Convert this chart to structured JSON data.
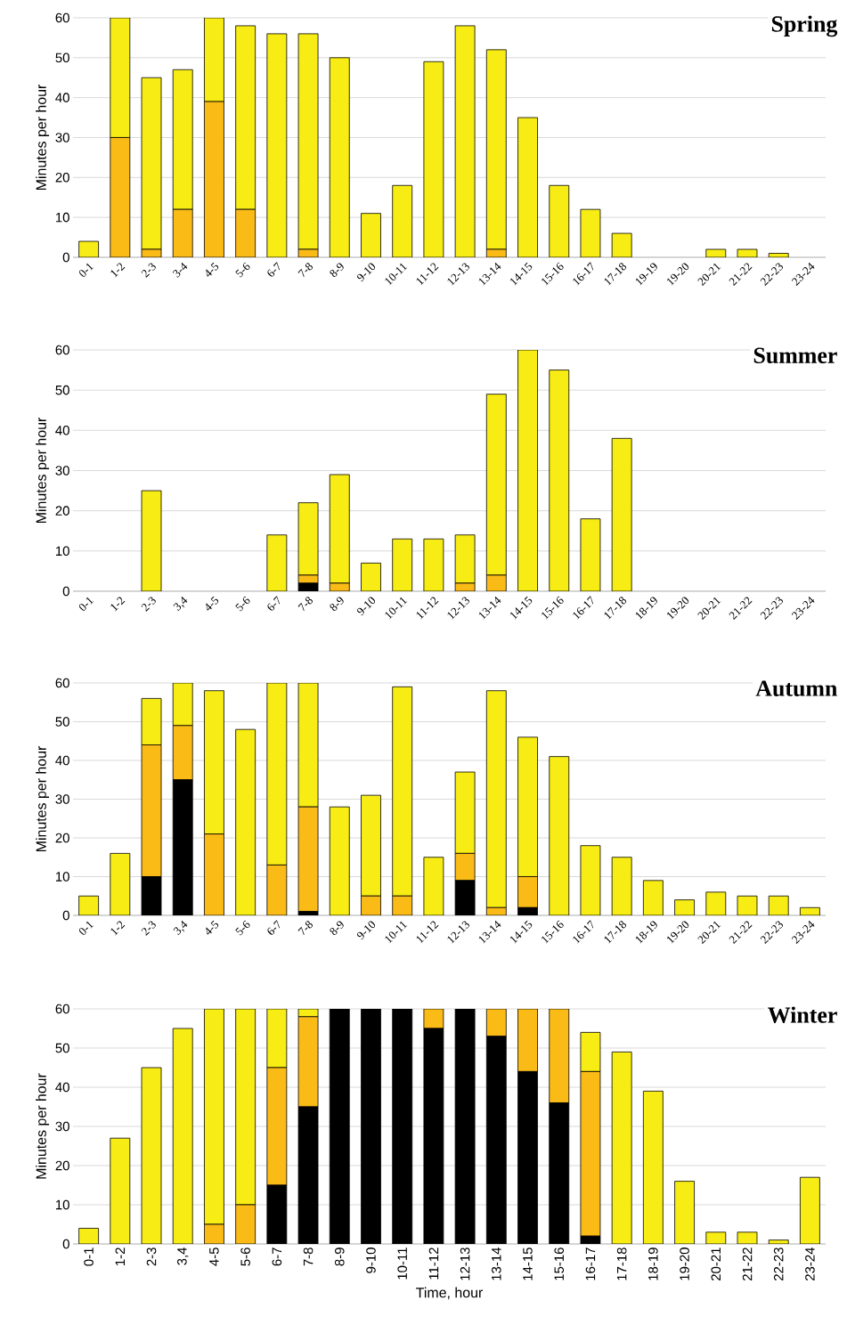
{
  "chart_data": [
    {
      "type": "bar",
      "title": "Spring",
      "ylabel": "Minutes per hour",
      "stacked": true,
      "grid": "y",
      "ylim": [
        0,
        60
      ],
      "yticks": [
        0,
        10,
        20,
        30,
        40,
        50,
        60
      ],
      "categories": [
        "0-1",
        "1-2",
        "2-3",
        "3-4",
        "4-5",
        "5-6",
        "6-7",
        "7-8",
        "8-9",
        "9-10",
        "10-11",
        "11-12",
        "12-13",
        "13-14",
        "14-15",
        "15-16",
        "16-17",
        "17-18",
        "19-19",
        "19-20",
        "20-21",
        "21-22",
        "22-23",
        "23-24"
      ],
      "series": [
        {
          "color": "#000000",
          "values": [
            null,
            null,
            null,
            null,
            null,
            null,
            null,
            null,
            null,
            null,
            null,
            null,
            null,
            null,
            null,
            null,
            null,
            null,
            null,
            null,
            null,
            null,
            null,
            null
          ]
        },
        {
          "color": "#fbbb17",
          "values": [
            null,
            30,
            2,
            12,
            39,
            12,
            null,
            2,
            null,
            null,
            null,
            null,
            null,
            2,
            null,
            null,
            null,
            null,
            null,
            null,
            null,
            null,
            null,
            null
          ]
        },
        {
          "color": "#f7ec14",
          "values": [
            4,
            30,
            43,
            35,
            21,
            46,
            56,
            54,
            50,
            11,
            18,
            49,
            58,
            50,
            35,
            18,
            12,
            6,
            null,
            null,
            2,
            2,
            1,
            null
          ]
        }
      ]
    },
    {
      "type": "bar",
      "title": "Summer",
      "ylabel": "Minutes per hour",
      "stacked": true,
      "grid": "y",
      "ylim": [
        0,
        60
      ],
      "yticks": [
        0,
        10,
        20,
        30,
        40,
        50,
        60
      ],
      "categories": [
        "0-1",
        "1-2",
        "2-3",
        "3,4",
        "4-5",
        "5-6",
        "6-7",
        "7-8",
        "8-9",
        "9-10",
        "10-11",
        "11-12",
        "12-13",
        "13-14",
        "14-15",
        "15-16",
        "16-17",
        "17-18",
        "18-19",
        "19-20",
        "20-21",
        "21-22",
        "22-23",
        "23-24"
      ],
      "series": [
        {
          "color": "#000000",
          "values": [
            null,
            null,
            null,
            null,
            null,
            null,
            null,
            2,
            null,
            null,
            null,
            null,
            null,
            null,
            null,
            null,
            null,
            null,
            null,
            null,
            null,
            null,
            null,
            null
          ]
        },
        {
          "color": "#fbbb17",
          "values": [
            null,
            null,
            null,
            null,
            null,
            null,
            null,
            2,
            2,
            null,
            null,
            null,
            2,
            4,
            null,
            null,
            null,
            null,
            null,
            null,
            null,
            null,
            null,
            null
          ]
        },
        {
          "color": "#f7ec14",
          "values": [
            null,
            null,
            25,
            null,
            null,
            null,
            14,
            18,
            27,
            7,
            13,
            13,
            12,
            45,
            60,
            55,
            18,
            38,
            null,
            null,
            null,
            null,
            null,
            null
          ]
        }
      ]
    },
    {
      "type": "bar",
      "title": "Autumn",
      "ylabel": "Minutes per hour",
      "stacked": true,
      "grid": "y",
      "ylim": [
        0,
        60
      ],
      "yticks": [
        0,
        10,
        20,
        30,
        40,
        50,
        60
      ],
      "categories": [
        "0-1",
        "1-2",
        "2-3",
        "3,4",
        "4-5",
        "5-6",
        "6-7",
        "7-8",
        "8-9",
        "9-10",
        "10-11",
        "11-12",
        "12-13",
        "13-14",
        "14-15",
        "15-16",
        "16-17",
        "17-18",
        "18-19",
        "19-20",
        "20-21",
        "21-22",
        "22-23",
        "23-24"
      ],
      "series": [
        {
          "color": "#000000",
          "values": [
            null,
            null,
            10,
            35,
            null,
            null,
            null,
            1,
            null,
            null,
            null,
            null,
            9,
            null,
            2,
            null,
            null,
            null,
            null,
            null,
            null,
            null,
            null,
            null
          ]
        },
        {
          "color": "#fbbb17",
          "values": [
            null,
            null,
            34,
            14,
            21,
            null,
            13,
            27,
            null,
            5,
            5,
            null,
            7,
            2,
            8,
            null,
            null,
            null,
            null,
            null,
            null,
            null,
            null,
            null
          ]
        },
        {
          "color": "#f7ec14",
          "values": [
            5,
            16,
            12,
            11,
            37,
            48,
            47,
            32,
            28,
            26,
            54,
            15,
            21,
            56,
            36,
            41,
            18,
            15,
            9,
            4,
            6,
            5,
            5,
            2
          ]
        }
      ]
    },
    {
      "type": "bar",
      "title": "Winter",
      "ylabel": "Minutes per hour",
      "xlabel": "Time, hour",
      "stacked": true,
      "grid": "y",
      "ylim": [
        0,
        60
      ],
      "yticks": [
        0,
        10,
        20,
        30,
        40,
        50,
        60
      ],
      "categories": [
        "0-1",
        "1-2",
        "2-3",
        "3,4",
        "4-5",
        "5-6",
        "6-7",
        "7-8",
        "8-9",
        "9-10",
        "10-11",
        "11-12",
        "12-13",
        "13-14",
        "14-15",
        "15-16",
        "16-17",
        "17-18",
        "18-19",
        "19-20",
        "20-21",
        "21-22",
        "22-23",
        "23-24"
      ],
      "series": [
        {
          "color": "#000000",
          "values": [
            null,
            null,
            null,
            null,
            null,
            null,
            15,
            35,
            60,
            60,
            60,
            55,
            60,
            53,
            44,
            36,
            2,
            null,
            null,
            null,
            null,
            null,
            null,
            null
          ]
        },
        {
          "color": "#fbbb17",
          "values": [
            null,
            null,
            null,
            null,
            5,
            10,
            30,
            23,
            null,
            null,
            null,
            5,
            null,
            7,
            16,
            24,
            42,
            null,
            null,
            null,
            null,
            null,
            null,
            null
          ]
        },
        {
          "color": "#f7ec14",
          "values": [
            4,
            27,
            45,
            55,
            55,
            50,
            15,
            2,
            null,
            null,
            null,
            null,
            null,
            null,
            null,
            null,
            10,
            49,
            39,
            16,
            3,
            3,
            1,
            17
          ]
        }
      ]
    }
  ]
}
